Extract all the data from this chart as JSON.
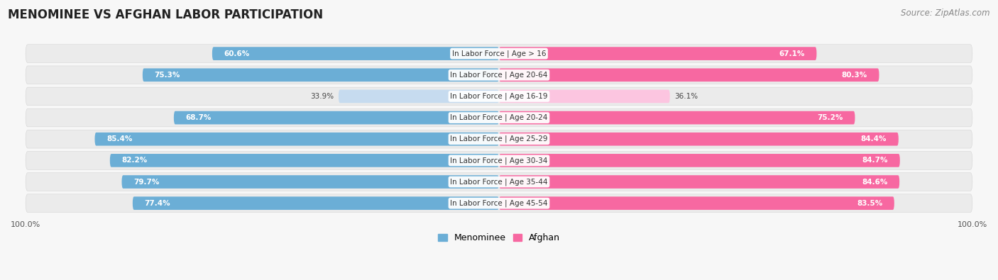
{
  "title": "MENOMINEE VS AFGHAN LABOR PARTICIPATION",
  "source": "Source: ZipAtlas.com",
  "categories": [
    "In Labor Force | Age > 16",
    "In Labor Force | Age 20-64",
    "In Labor Force | Age 16-19",
    "In Labor Force | Age 20-24",
    "In Labor Force | Age 25-29",
    "In Labor Force | Age 30-34",
    "In Labor Force | Age 35-44",
    "In Labor Force | Age 45-54"
  ],
  "menominee_values": [
    60.6,
    75.3,
    33.9,
    68.7,
    85.4,
    82.2,
    79.7,
    77.4
  ],
  "afghan_values": [
    67.1,
    80.3,
    36.1,
    75.2,
    84.4,
    84.7,
    84.6,
    83.5
  ],
  "menominee_color": "#6baed6",
  "menominee_color_light": "#c6dbef",
  "afghan_color": "#f768a1",
  "afghan_color_light": "#fcc5e0",
  "row_bg_color": "#eeeeee",
  "row_bg_alt_color": "#e0e0e0",
  "background_color": "#f7f7f7",
  "title_fontsize": 12,
  "source_fontsize": 8.5,
  "label_fontsize": 7.5,
  "value_fontsize": 7.5,
  "max_value": 100.0,
  "legend_labels": [
    "Menominee",
    "Afghan"
  ],
  "threshold_for_light": 50
}
